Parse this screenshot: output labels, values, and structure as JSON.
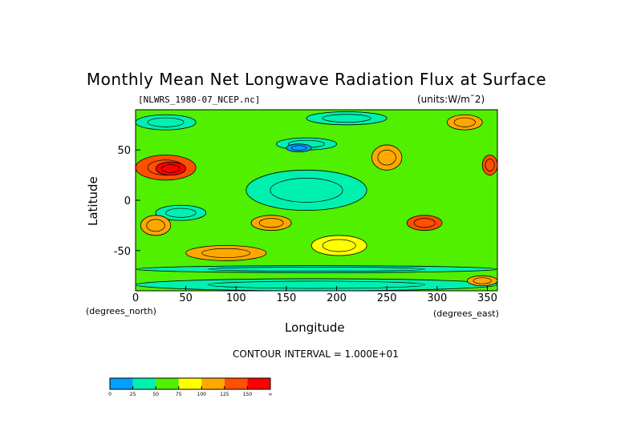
{
  "chart_data": {
    "type": "heatmap",
    "subtype": "filled-contour-map",
    "title": "Monthly Mean Net Longwave Radiation Flux at Surface",
    "file_label": "[NLWRS_1980-07_NCEP.nc]",
    "units_label": "(units:W/m¯2)",
    "xlabel": "Longitude",
    "ylabel": "Latitude",
    "x_unit_label": "(degrees_east)",
    "y_unit_label": "(degrees_north)",
    "xlim": [
      0,
      360
    ],
    "ylim": [
      -90,
      90
    ],
    "x_ticks": [
      0,
      50,
      100,
      150,
      200,
      250,
      300,
      350
    ],
    "y_ticks": [
      -50,
      0,
      50
    ],
    "contour_interval_label": "CONTOUR INTERVAL = 1.000E+01",
    "colorbar": {
      "levels": [
        "0",
        "25",
        "50",
        "75",
        "100",
        "125",
        "150",
        "∞"
      ],
      "colors": [
        "#00a0ff",
        "#00f0b0",
        "#50f000",
        "#ffff00",
        "#ffa800",
        "#ff5000",
        "#ff0000"
      ]
    },
    "background_level_color": "#50f000",
    "regions": [
      {
        "lon": [
          110,
          230
        ],
        "lat": [
          -10,
          30
        ],
        "color": "#00f0b0"
      },
      {
        "lon": [
          20,
          70
        ],
        "lat": [
          -20,
          -5
        ],
        "color": "#00f0b0"
      },
      {
        "lon": [
          0,
          60
        ],
        "lat": [
          70,
          85
        ],
        "color": "#00f0b0"
      },
      {
        "lon": [
          170,
          250
        ],
        "lat": [
          75,
          88
        ],
        "color": "#00f0b0"
      },
      {
        "lon": [
          140,
          200
        ],
        "lat": [
          50,
          62
        ],
        "color": "#00f0b0"
      },
      {
        "lon": [
          150,
          175
        ],
        "lat": [
          48,
          56
        ],
        "color": "#00a0ff"
      },
      {
        "lon": [
          0,
          360
        ],
        "lat": [
          -72,
          -65
        ],
        "color": "#00f0b0"
      },
      {
        "lon": [
          0,
          360
        ],
        "lat": [
          -90,
          -78
        ],
        "color": "#00f0b0"
      },
      {
        "lon": [
          0,
          60
        ],
        "lat": [
          20,
          45
        ],
        "color": "#ff5000"
      },
      {
        "lon": [
          20,
          50
        ],
        "lat": [
          25,
          38
        ],
        "color": "#ff0000"
      },
      {
        "lon": [
          5,
          35
        ],
        "lat": [
          -35,
          -15
        ],
        "color": "#ffa800"
      },
      {
        "lon": [
          115,
          155
        ],
        "lat": [
          -30,
          -15
        ],
        "color": "#ffa800"
      },
      {
        "lon": [
          175,
          230
        ],
        "lat": [
          -55,
          -35
        ],
        "color": "#ffff00"
      },
      {
        "lon": [
          235,
          265
        ],
        "lat": [
          30,
          55
        ],
        "color": "#ffa800"
      },
      {
        "lon": [
          345,
          360
        ],
        "lat": [
          25,
          45
        ],
        "color": "#ff5000"
      },
      {
        "lon": [
          310,
          345
        ],
        "lat": [
          70,
          85
        ],
        "color": "#ffa800"
      },
      {
        "lon": [
          270,
          305
        ],
        "lat": [
          -30,
          -15
        ],
        "color": "#ff5000"
      },
      {
        "lon": [
          50,
          130
        ],
        "lat": [
          -60,
          -45
        ],
        "color": "#ffa800"
      },
      {
        "lon": [
          330,
          360
        ],
        "lat": [
          -85,
          -75
        ],
        "color": "#ffa800"
      }
    ]
  }
}
